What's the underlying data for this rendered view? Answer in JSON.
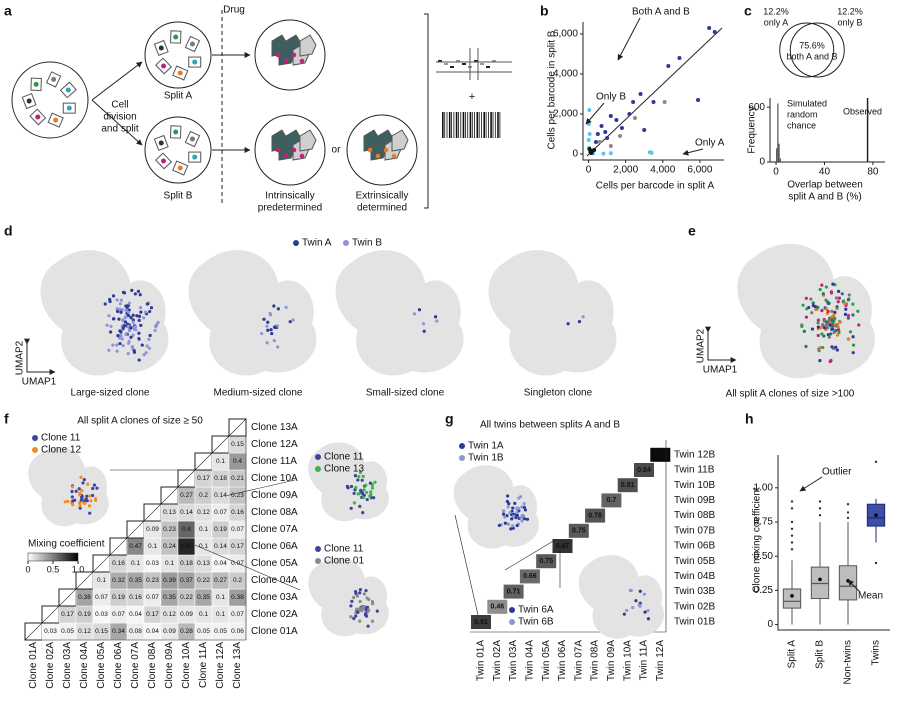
{
  "panel_labels": [
    "a",
    "b",
    "c",
    "d",
    "e",
    "f",
    "g",
    "h"
  ],
  "diagram_a": {
    "cell_division": [
      "Cell",
      "division",
      "and split"
    ],
    "split_a": "Split A",
    "split_b": "Split B",
    "drug": "Drug",
    "intrinsic": [
      "Intrinsically",
      "predetermined"
    ],
    "or": "or",
    "extrinsic": [
      "Extrinsically",
      "determined"
    ],
    "plus": "+"
  },
  "umap_d": {
    "legend": [
      "Twin A",
      "Twin B"
    ],
    "legend_colors": [
      "#2c3a96",
      "#8d95d6"
    ],
    "axis_y": "UMAP2",
    "axis_x": "UMAP1",
    "captions": [
      "Large-sized clone",
      "Medium-sized clone",
      "Small-sized clone",
      "Singleton clone"
    ]
  },
  "umap_e": {
    "axis_y": "UMAP2",
    "axis_x": "UMAP1",
    "caption": "All split A clones of size >100"
  },
  "chart_data": [
    {
      "type": "scatter",
      "x_label": "Cells per barcode in split A",
      "y_label": "Cells per barcode in split B",
      "xlim": [
        -300,
        7300
      ],
      "ylim": [
        -300,
        6600
      ],
      "xticks": [
        0,
        {
          "value": 2000,
          "label": "2,000"
        },
        {
          "value": 4000,
          "label": "4,000"
        },
        {
          "value": 6000,
          "label": "6,000"
        }
      ],
      "yticks": [
        0,
        {
          "value": 2000,
          "label": "2,000"
        },
        {
          "value": 4000,
          "label": "4,000"
        },
        {
          "value": 6000,
          "label": "6,000"
        }
      ],
      "series": [
        {
          "name": "Both A and B",
          "color": "#2c3a96",
          "x": [
            4300,
            4900,
            6800,
            2200,
            1500,
            1000,
            2800,
            3500,
            700,
            500,
            1800,
            6500,
            3000,
            5900,
            1200,
            2400,
            400,
            900
          ],
          "values": [
            4400,
            4800,
            6100,
            2000,
            1700,
            800,
            3000,
            2600,
            1400,
            1000,
            1300,
            6300,
            1200,
            2700,
            1900,
            2600,
            600,
            1100
          ]
        },
        {
          "name": "Only A",
          "color": "#5ec4ef",
          "x": [
            3400,
            3300,
            250,
            800,
            1200
          ],
          "values": [
            60,
            90,
            30,
            20,
            40
          ]
        },
        {
          "name": "Only B",
          "color": "#5ec4ef",
          "x": [
            20,
            40,
            10,
            30,
            60
          ],
          "values": [
            1500,
            2200,
            700,
            300,
            1000
          ]
        },
        {
          "color": "#8a8a8a",
          "x": [
            600,
            1200,
            2500,
            4100,
            1700
          ],
          "values": [
            600,
            400,
            1800,
            2600,
            900
          ]
        },
        {
          "color": "#111111",
          "x": [
            100,
            200,
            50,
            150,
            300
          ],
          "values": [
            100,
            150,
            250,
            50,
            200
          ]
        }
      ]
    },
    {
      "type": "venn",
      "sets": [
        "only A",
        "only B",
        "both A and B"
      ],
      "values": [
        12.2,
        12.2,
        75.6
      ],
      "value_labels": [
        "12.2%",
        "12.2%",
        "75.6%"
      ]
    },
    {
      "type": "histogram",
      "y_label": "Frequency",
      "x_label": [
        "Overlap between",
        "split A and B (%)"
      ],
      "bins": [
        0,
        1,
        2,
        3,
        4
      ],
      "values": [
        150,
        640,
        200,
        40
      ],
      "color": "#555555",
      "xlim": [
        -5,
        90
      ],
      "ylim": [
        0,
        700
      ],
      "xticks": [
        0,
        40,
        80
      ],
      "yticks": [
        0,
        600
      ],
      "annotations": [
        [
          "Simulated",
          "random",
          "chance"
        ],
        "Observed"
      ],
      "observed": 75.6
    },
    {
      "type": "heatmap",
      "title": "All split A clones of size ≥ 50",
      "rows": [
        "Clone 01A",
        "Clone 02A",
        "Clone 03A",
        "Clone 04A",
        "Clone 05A",
        "Clone 06A",
        "Clone 07A",
        "Clone 08A",
        "Clone 09A",
        "Clone 10A",
        "Clone 11A",
        "Clone 12A",
        "Clone 13A"
      ],
      "columns": [
        "Clone 01A",
        "Clone 02A",
        "Clone 03A",
        "Clone 04A",
        "Clone 05A",
        "Clone 06A",
        "Clone 07A",
        "Clone 08A",
        "Clone 09A",
        "Clone 10A",
        "Clone 11A",
        "Clone 12A",
        "Clone 13A"
      ],
      "values": [
        [
          null,
          0.03,
          0.05,
          0.12,
          0.15,
          0.34,
          0.08,
          0.04,
          0.09,
          0.28,
          0.05,
          0.05,
          0.06
        ],
        [
          null,
          null,
          0.17,
          0.19,
          0.03,
          0.07,
          0.04,
          0.17,
          0.12,
          0.09,
          0.1,
          0.1,
          0.07
        ],
        [
          null,
          null,
          null,
          0.36,
          0.07,
          0.19,
          0.16,
          0.07,
          0.35,
          0.22,
          0.35,
          0.1,
          0.38
        ],
        [
          null,
          null,
          null,
          null,
          0.1,
          0.32,
          0.35,
          0.23,
          0.39,
          0.37,
          0.22,
          0.27,
          0.2
        ],
        [
          null,
          null,
          null,
          null,
          null,
          0.16,
          0.1,
          0.03,
          0.1,
          0.18,
          0.13,
          0.04,
          0.07
        ],
        [
          null,
          null,
          null,
          null,
          null,
          null,
          0.47,
          0.1,
          0.24,
          0.85,
          0.1,
          0.14,
          0.17
        ],
        [
          null,
          null,
          null,
          null,
          null,
          null,
          null,
          0.09,
          0.23,
          0.6,
          0.1,
          0.19,
          0.07
        ],
        [
          null,
          null,
          null,
          null,
          null,
          null,
          null,
          null,
          0.13,
          0.14,
          0.12,
          0.07,
          0.16
        ],
        [
          null,
          null,
          null,
          null,
          null,
          null,
          null,
          null,
          null,
          0.27,
          0.2,
          0.14,
          0.23
        ],
        [
          null,
          null,
          null,
          null,
          null,
          null,
          null,
          null,
          null,
          null,
          0.17,
          0.18,
          0.21
        ],
        [
          null,
          null,
          null,
          null,
          null,
          null,
          null,
          null,
          null,
          null,
          null,
          0.1,
          0.4
        ],
        [
          null,
          null,
          null,
          null,
          null,
          null,
          null,
          null,
          null,
          null,
          null,
          null,
          0.15
        ],
        [
          null,
          null,
          null,
          null,
          null,
          null,
          null,
          null,
          null,
          null,
          null,
          null,
          null
        ]
      ],
      "color_title": "Mixing coefficient",
      "color_lim": [
        0,
        1
      ],
      "color_ticks": [
        0,
        0.5,
        {
          "value": 1,
          "label": "1.0"
        }
      ],
      "insets": [
        {
          "names": [
            "Clone 11",
            "Clone 12"
          ],
          "colors": [
            "#3b44a0",
            "#f28c28"
          ]
        },
        {
          "names": [
            "Clone 11",
            "Clone 13"
          ],
          "colors": [
            "#3b44a0",
            "#3cb44b"
          ]
        },
        {
          "names": [
            "Clone 11",
            "Clone 01"
          ],
          "colors": [
            "#3b44a0",
            "#8a8a8a"
          ]
        }
      ]
    },
    {
      "type": "diagonal",
      "title": "All twins between splits A and B",
      "rows": [
        "Twin 01B",
        "Twin 02B",
        "Twin 03B",
        "Twin 04B",
        "Twin 05B",
        "Twin 06B",
        "Twin 07B",
        "Twin 08B",
        "Twin 09B",
        "Twin 10B",
        "Twin 11B",
        "Twin 12B"
      ],
      "columns": [
        "Twin 01A",
        "Twin 02A",
        "Twin 03A",
        "Twin 04A",
        "Twin 05A",
        "Twin 06A",
        "Twin 07A",
        "Twin 08A",
        "Twin 09A",
        "Twin 10A",
        "Twin 11A",
        "Twin 12A"
      ],
      "values": [
        0.91,
        0.46,
        0.71,
        0.66,
        0.75,
        0.97,
        0.75,
        0.78,
        0.7,
        0.81,
        0.84,
        1.19
      ],
      "insets": [
        {
          "names": [
            "Twin 1A",
            "Twin 1B"
          ],
          "colors": [
            "#2c3a96",
            "#8d95d6"
          ]
        },
        {
          "names": [
            "Twin 6A",
            "Twin 6B"
          ],
          "colors": [
            "#2c3a96",
            "#8d95d6"
          ]
        }
      ]
    },
    {
      "type": "box",
      "y_label": "Clone mixing coefficient",
      "categories": [
        "Split A",
        "Split B",
        "Non-twins",
        "Twins"
      ],
      "colors": [
        "#bdbdbd",
        "#bdbdbd",
        "#bdbdbd",
        "#3c4ea8"
      ],
      "whisker_low": [
        0,
        0,
        0,
        0.6
      ],
      "q1": [
        0.12,
        0.19,
        0.18,
        0.72
      ],
      "median": [
        0.17,
        0.3,
        0.28,
        0.78
      ],
      "q3": [
        0.26,
        0.42,
        0.43,
        0.88
      ],
      "whisker_high": [
        0.47,
        0.75,
        0.75,
        0.92
      ],
      "mean": [
        0.21,
        0.33,
        0.32,
        0.8
      ],
      "outliers": [
        [
          0.55,
          0.6,
          0.65,
          0.7,
          0.75,
          0.85,
          0.9
        ],
        [
          0.8,
          0.85,
          0.9
        ],
        [
          0.78,
          0.82,
          0.88
        ],
        [
          1.19,
          0.45
        ]
      ],
      "ylim": [
        -0.04,
        1.24
      ],
      "yticks": [
        0,
        0.25,
        {
          "value": 0.5,
          "label": "0.50"
        },
        0.75,
        {
          "value": 1,
          "label": "1.00"
        }
      ],
      "annotations": [
        "Outlier",
        "Mean"
      ]
    }
  ]
}
